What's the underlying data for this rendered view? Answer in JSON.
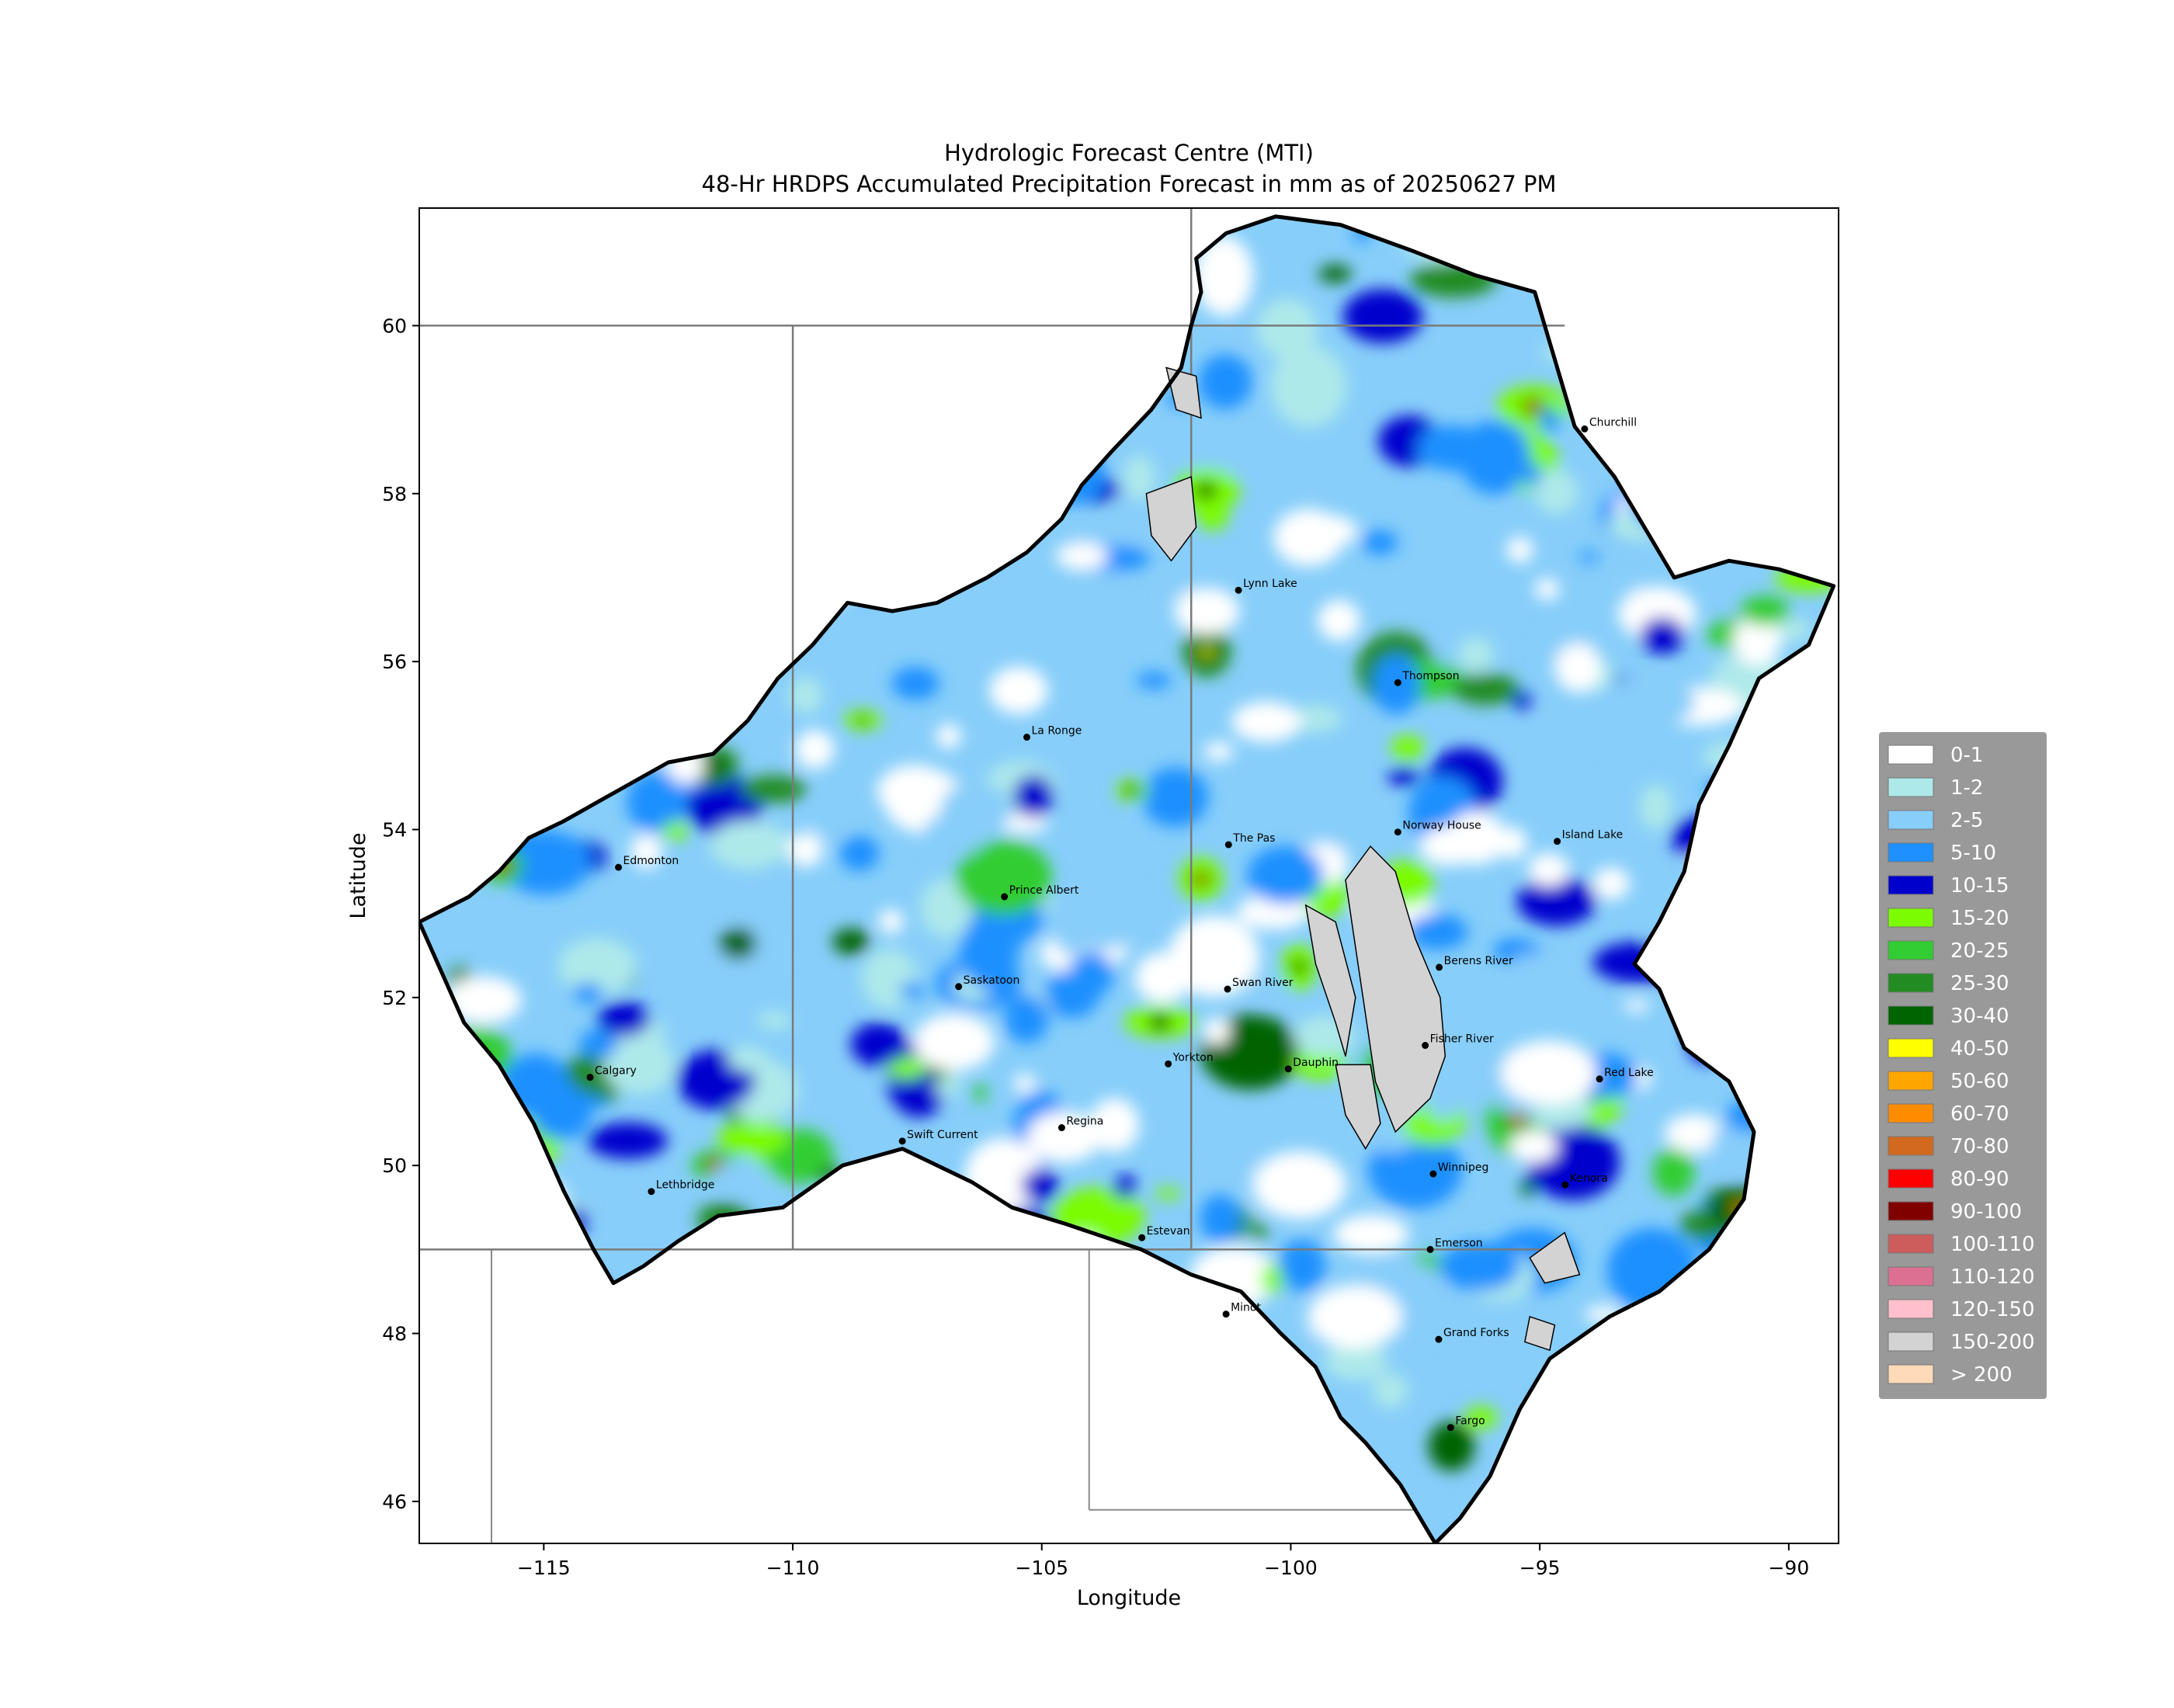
{
  "title": {
    "line1": "Hydrologic Forecast Centre (MTI)",
    "line2": "48-Hr HRDPS Accumulated Precipitation Forecast in mm as of 20250627 PM"
  },
  "axes": {
    "xlabel": "Longitude",
    "ylabel": "Latitude",
    "xlim": [
      -117.5,
      -89
    ],
    "ylim": [
      45.5,
      61.4
    ],
    "xticks": [
      {
        "value": -115,
        "label": "−115"
      },
      {
        "value": -110,
        "label": "−110"
      },
      {
        "value": -105,
        "label": "−105"
      },
      {
        "value": -100,
        "label": "−100"
      },
      {
        "value": -95,
        "label": "−95"
      },
      {
        "value": -90,
        "label": "−90"
      }
    ],
    "yticks": [
      {
        "value": 46,
        "label": "46"
      },
      {
        "value": 48,
        "label": "48"
      },
      {
        "value": 50,
        "label": "50"
      },
      {
        "value": 52,
        "label": "52"
      },
      {
        "value": 54,
        "label": "54"
      },
      {
        "value": 56,
        "label": "56"
      },
      {
        "value": 58,
        "label": "58"
      },
      {
        "value": 60,
        "label": "60"
      }
    ]
  },
  "legend": {
    "placement": "right",
    "background": "#999999",
    "items": [
      {
        "label": "0-1",
        "color": "#ffffff"
      },
      {
        "label": "1-2",
        "color": "#aee9ea"
      },
      {
        "label": "2-5",
        "color": "#87cefa"
      },
      {
        "label": "5-10",
        "color": "#1e90ff"
      },
      {
        "label": "10-15",
        "color": "#0000cd"
      },
      {
        "label": "15-20",
        "color": "#7cfc00"
      },
      {
        "label": "20-25",
        "color": "#32cd32"
      },
      {
        "label": "25-30",
        "color": "#228b22"
      },
      {
        "label": "30-40",
        "color": "#006400"
      },
      {
        "label": "40-50",
        "color": "#ffff00"
      },
      {
        "label": "50-60",
        "color": "#ffa500"
      },
      {
        "label": "60-70",
        "color": "#ff8c00"
      },
      {
        "label": "70-80",
        "color": "#d2691e"
      },
      {
        "label": "80-90",
        "color": "#ff0000"
      },
      {
        "label": "90-100",
        "color": "#800000"
      },
      {
        "label": "100-110",
        "color": "#cd5c5c"
      },
      {
        "label": "110-120",
        "color": "#db7093"
      },
      {
        "label": "120-150",
        "color": "#ffc0cb"
      },
      {
        "label": "150-200",
        "color": "#d3d3d3"
      },
      {
        "label": "> 200",
        "color": "#ffdab9"
      }
    ]
  },
  "map": {
    "basin_outline": [
      [
        -117.5,
        52.9
      ],
      [
        -116.5,
        53.2
      ],
      [
        -115.9,
        53.5
      ],
      [
        -115.3,
        53.9
      ],
      [
        -114.6,
        54.1
      ],
      [
        -113.7,
        54.4
      ],
      [
        -112.5,
        54.8
      ],
      [
        -111.6,
        54.9
      ],
      [
        -110.9,
        55.3
      ],
      [
        -110.3,
        55.8
      ],
      [
        -109.6,
        56.2
      ],
      [
        -108.9,
        56.7
      ],
      [
        -108.0,
        56.6
      ],
      [
        -107.1,
        56.7
      ],
      [
        -106.1,
        57.0
      ],
      [
        -105.3,
        57.3
      ],
      [
        -104.6,
        57.7
      ],
      [
        -104.2,
        58.1
      ],
      [
        -103.6,
        58.5
      ],
      [
        -102.8,
        59.0
      ],
      [
        -102.2,
        59.5
      ],
      [
        -102.0,
        60.0
      ],
      [
        -101.8,
        60.4
      ],
      [
        -101.9,
        60.8
      ],
      [
        -101.3,
        61.1
      ],
      [
        -100.3,
        61.3
      ],
      [
        -99.0,
        61.2
      ],
      [
        -97.6,
        60.9
      ],
      [
        -96.3,
        60.6
      ],
      [
        -95.1,
        60.4
      ],
      [
        -94.7,
        59.6
      ],
      [
        -94.3,
        58.8
      ],
      [
        -93.5,
        58.2
      ],
      [
        -92.8,
        57.5
      ],
      [
        -92.3,
        57.0
      ],
      [
        -91.2,
        57.2
      ],
      [
        -90.2,
        57.1
      ],
      [
        -89.1,
        56.9
      ],
      [
        -89.6,
        56.2
      ],
      [
        -90.6,
        55.8
      ],
      [
        -91.2,
        55.0
      ],
      [
        -91.8,
        54.3
      ],
      [
        -92.1,
        53.5
      ],
      [
        -92.6,
        52.9
      ],
      [
        -93.1,
        52.4
      ],
      [
        -92.6,
        52.1
      ],
      [
        -92.1,
        51.4
      ],
      [
        -91.2,
        51.0
      ],
      [
        -90.7,
        50.4
      ],
      [
        -90.9,
        49.6
      ],
      [
        -91.6,
        49.0
      ],
      [
        -92.6,
        48.5
      ],
      [
        -93.6,
        48.2
      ],
      [
        -94.8,
        47.7
      ],
      [
        -95.4,
        47.1
      ],
      [
        -96.0,
        46.3
      ],
      [
        -96.6,
        45.8
      ],
      [
        -97.1,
        45.5
      ],
      [
        -97.8,
        46.2
      ],
      [
        -98.5,
        46.7
      ],
      [
        -99.0,
        47.0
      ],
      [
        -99.5,
        47.6
      ],
      [
        -100.2,
        48.0
      ],
      [
        -101.0,
        48.5
      ],
      [
        -102.0,
        48.7
      ],
      [
        -103.0,
        49.0
      ],
      [
        -104.5,
        49.3
      ],
      [
        -105.6,
        49.5
      ],
      [
        -106.4,
        49.8
      ],
      [
        -107.8,
        50.2
      ],
      [
        -109.0,
        50.0
      ],
      [
        -110.2,
        49.5
      ],
      [
        -111.5,
        49.4
      ],
      [
        -112.3,
        49.1
      ],
      [
        -113.0,
        48.8
      ],
      [
        -113.6,
        48.6
      ],
      [
        -114.0,
        49.0
      ],
      [
        -114.6,
        49.7
      ],
      [
        -115.2,
        50.5
      ],
      [
        -115.9,
        51.2
      ],
      [
        -116.6,
        51.7
      ],
      [
        -117.5,
        52.9
      ]
    ],
    "lakes": [
      [
        [
          -98.9,
          53.4
        ],
        [
          -98.4,
          53.8
        ],
        [
          -97.9,
          53.5
        ],
        [
          -97.5,
          52.7
        ],
        [
          -97.0,
          52.0
        ],
        [
          -96.9,
          51.3
        ],
        [
          -97.2,
          50.8
        ],
        [
          -97.9,
          50.4
        ],
        [
          -98.3,
          51.0
        ],
        [
          -98.5,
          51.8
        ],
        [
          -98.7,
          52.6
        ]
      ],
      [
        [
          -99.7,
          53.1
        ],
        [
          -99.1,
          52.9
        ],
        [
          -98.7,
          52.0
        ],
        [
          -98.9,
          51.3
        ],
        [
          -99.1,
          51.7
        ],
        [
          -99.5,
          52.4
        ]
      ],
      [
        [
          -99.1,
          51.2
        ],
        [
          -98.4,
          51.2
        ],
        [
          -98.2,
          50.5
        ],
        [
          -98.5,
          50.2
        ],
        [
          -98.9,
          50.6
        ]
      ],
      [
        [
          -102.5,
          59.5
        ],
        [
          -101.9,
          59.4
        ],
        [
          -101.8,
          58.9
        ],
        [
          -102.3,
          59.0
        ]
      ],
      [
        [
          -102.9,
          58.0
        ],
        [
          -102.0,
          58.2
        ],
        [
          -101.9,
          57.6
        ],
        [
          -102.4,
          57.2
        ],
        [
          -102.8,
          57.5
        ]
      ],
      [
        [
          -95.2,
          48.9
        ],
        [
          -94.5,
          49.2
        ],
        [
          -94.2,
          48.7
        ],
        [
          -94.9,
          48.6
        ]
      ],
      [
        [
          -95.2,
          48.2
        ],
        [
          -94.7,
          48.1
        ],
        [
          -94.8,
          47.8
        ],
        [
          -95.3,
          47.9
        ]
      ]
    ],
    "provincial_borders": [
      [
        [
          -120,
          60
        ],
        [
          -94.5,
          60
        ]
      ],
      [
        [
          -110,
          60
        ],
        [
          -110,
          49
        ]
      ],
      [
        [
          -102,
          61.5
        ],
        [
          -102,
          49
        ]
      ],
      [
        [
          -120,
          49
        ],
        [
          -94.8,
          49
        ]
      ]
    ],
    "state_borders": [
      [
        [
          -104.05,
          49
        ],
        [
          -104.05,
          45.9
        ]
      ],
      [
        [
          -104.05,
          45.9
        ],
        [
          -96.5,
          45.9
        ]
      ],
      [
        [
          -116.05,
          49
        ],
        [
          -116.05,
          45.5
        ]
      ]
    ],
    "cities": [
      {
        "name": "Churchill",
        "lon": -94.1,
        "lat": 58.77
      },
      {
        "name": "Lynn Lake",
        "lon": -101.05,
        "lat": 56.85
      },
      {
        "name": "Thompson",
        "lon": -97.85,
        "lat": 55.75
      },
      {
        "name": "La Ronge",
        "lon": -105.3,
        "lat": 55.1
      },
      {
        "name": "The Pas",
        "lon": -101.25,
        "lat": 53.82
      },
      {
        "name": "Norway House",
        "lon": -97.85,
        "lat": 53.97
      },
      {
        "name": "Island Lake",
        "lon": -94.65,
        "lat": 53.86
      },
      {
        "name": "Edmonton",
        "lon": -113.5,
        "lat": 53.55
      },
      {
        "name": "Prince Albert",
        "lon": -105.75,
        "lat": 53.2
      },
      {
        "name": "Saskatoon",
        "lon": -106.67,
        "lat": 52.13
      },
      {
        "name": "Swan River",
        "lon": -101.27,
        "lat": 52.1
      },
      {
        "name": "Berens River",
        "lon": -97.02,
        "lat": 52.36
      },
      {
        "name": "Calgary",
        "lon": -114.07,
        "lat": 51.05
      },
      {
        "name": "Yorkton",
        "lon": -102.46,
        "lat": 51.21
      },
      {
        "name": "Dauphin",
        "lon": -100.05,
        "lat": 51.15
      },
      {
        "name": "Fisher River",
        "lon": -97.3,
        "lat": 51.43
      },
      {
        "name": "Red Lake",
        "lon": -93.8,
        "lat": 51.03
      },
      {
        "name": "Swift Current",
        "lon": -107.8,
        "lat": 50.29
      },
      {
        "name": "Regina",
        "lon": -104.6,
        "lat": 50.45
      },
      {
        "name": "Winnipeg",
        "lon": -97.14,
        "lat": 49.9
      },
      {
        "name": "Kenora",
        "lon": -94.49,
        "lat": 49.77
      },
      {
        "name": "Lethbridge",
        "lon": -112.84,
        "lat": 49.69
      },
      {
        "name": "Estevan",
        "lon": -102.99,
        "lat": 49.14
      },
      {
        "name": "Emerson",
        "lon": -97.2,
        "lat": 49.0
      },
      {
        "name": "Minot",
        "lon": -101.3,
        "lat": 48.23
      },
      {
        "name": "Grand Forks",
        "lon": -97.03,
        "lat": 47.93
      },
      {
        "name": "Fargo",
        "lon": -96.79,
        "lat": 46.88
      }
    ]
  }
}
